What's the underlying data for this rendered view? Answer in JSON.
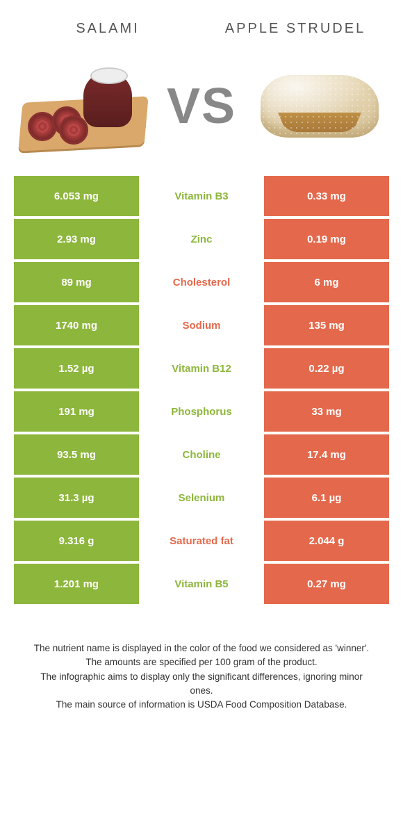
{
  "header": {
    "left_title": "Salami",
    "right_title": "Apple Strudel",
    "vs_label": "VS"
  },
  "colors": {
    "left_food": "#8db63c",
    "right_food": "#e4694c",
    "mid_bg": "#ffffff",
    "cell_gap_bg": "#ffffff",
    "text_dark": "#333333"
  },
  "rows": [
    {
      "left": "6.053 mg",
      "label": "Vitamin B3",
      "right": "0.33 mg",
      "winner": "left"
    },
    {
      "left": "2.93 mg",
      "label": "Zinc",
      "right": "0.19 mg",
      "winner": "left"
    },
    {
      "left": "89 mg",
      "label": "Cholesterol",
      "right": "6 mg",
      "winner": "right"
    },
    {
      "left": "1740 mg",
      "label": "Sodium",
      "right": "135 mg",
      "winner": "right"
    },
    {
      "left": "1.52 µg",
      "label": "Vitamin B12",
      "right": "0.22 µg",
      "winner": "left"
    },
    {
      "left": "191 mg",
      "label": "Phosphorus",
      "right": "33 mg",
      "winner": "left"
    },
    {
      "left": "93.5 mg",
      "label": "Choline",
      "right": "17.4 mg",
      "winner": "left"
    },
    {
      "left": "31.3 µg",
      "label": "Selenium",
      "right": "6.1 µg",
      "winner": "left"
    },
    {
      "left": "9.316 g",
      "label": "Saturated fat",
      "right": "2.044 g",
      "winner": "right"
    },
    {
      "left": "1.201 mg",
      "label": "Vitamin B5",
      "right": "0.27 mg",
      "winner": "left"
    }
  ],
  "footnote": {
    "line1": "The nutrient name is displayed in the color of the food we considered as 'winner'.",
    "line2": "The amounts are specified per 100 gram of the product.",
    "line3": "The infographic aims to display only the significant differences, ignoring minor ones.",
    "line4": "The main source of information is USDA Food Composition Database."
  }
}
